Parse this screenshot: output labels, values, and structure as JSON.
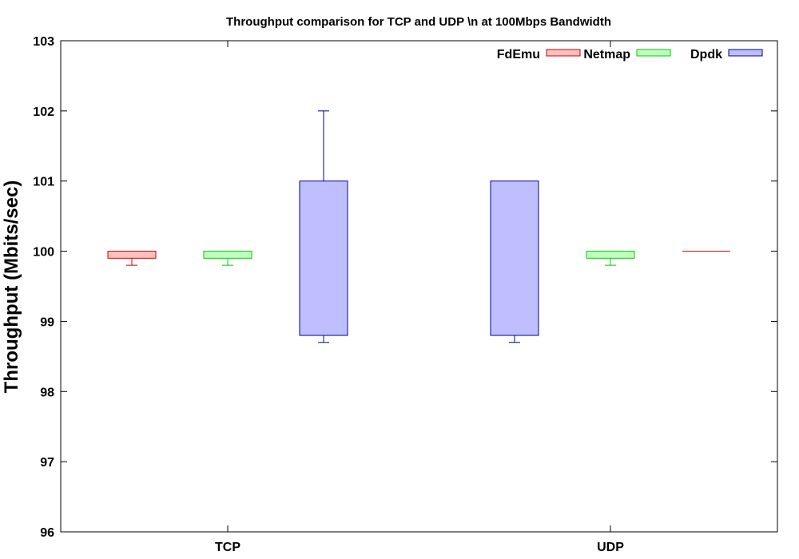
{
  "chart_data": {
    "type": "box",
    "title": "Throughput comparison for TCP and UDP \\n at 100Mbps Bandwidth",
    "xlabel": "",
    "ylabel": "Throughput (Mbits/sec)",
    "ylim": [
      96,
      103
    ],
    "yticks": [
      96,
      97,
      98,
      99,
      100,
      101,
      102,
      103
    ],
    "categories": [
      "TCP",
      "UDP"
    ],
    "legend_position": "top-right",
    "grid": false,
    "series": [
      {
        "name": "FdEmu",
        "color": "#cc0000",
        "fill": "#ffc0c0",
        "boxes": [
          {
            "category": "TCP",
            "whisker_low": 99.8,
            "q1": 99.9,
            "q3": 100.0,
            "whisker_high": 100.0
          },
          {
            "category": "UDP",
            "whisker_low": 100.0,
            "q1": 100.0,
            "q3": 100.0,
            "whisker_high": 100.0
          }
        ]
      },
      {
        "name": "Netmap",
        "color": "#00cc00",
        "fill": "#c0ffc0",
        "boxes": [
          {
            "category": "TCP",
            "whisker_low": 99.8,
            "q1": 99.9,
            "q3": 100.0,
            "whisker_high": 100.0
          },
          {
            "category": "UDP",
            "whisker_low": 99.8,
            "q1": 99.9,
            "q3": 100.0,
            "whisker_high": 100.0
          }
        ]
      },
      {
        "name": "Dpdk",
        "color": "#000099",
        "fill": "#bfbfff",
        "boxes": [
          {
            "category": "TCP",
            "whisker_low": 98.7,
            "q1": 98.8,
            "q3": 101.0,
            "whisker_high": 102.0
          },
          {
            "category": "UDP",
            "whisker_low": 98.7,
            "q1": 98.8,
            "q3": 101.0,
            "whisker_high": 101.0
          }
        ]
      }
    ]
  }
}
